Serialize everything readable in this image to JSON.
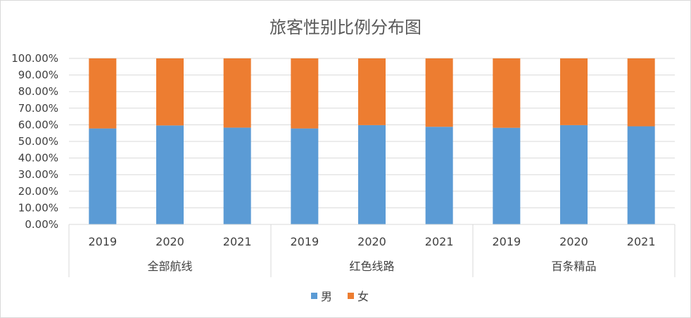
{
  "chart_data": {
    "type": "bar",
    "stacked": true,
    "title": "旅客性别比例分布图",
    "xlabel": "",
    "ylabel": "",
    "ylim": [
      0,
      1
    ],
    "yticks": [
      "0.00%",
      "10.00%",
      "20.00%",
      "30.00%",
      "40.00%",
      "50.00%",
      "60.00%",
      "70.00%",
      "80.00%",
      "90.00%",
      "100.00%"
    ],
    "grid": true,
    "legend_position": "bottom",
    "groups": [
      {
        "label": "全部航线",
        "categories": [
          "2019",
          "2020",
          "2021"
        ]
      },
      {
        "label": "红色线路",
        "categories": [
          "2019",
          "2020",
          "2021"
        ]
      },
      {
        "label": "百条精品",
        "categories": [
          "2019",
          "2020",
          "2021"
        ]
      }
    ],
    "series": [
      {
        "name": "男",
        "color": "#5b9bd5",
        "values": [
          0.578,
          0.596,
          0.583,
          0.578,
          0.598,
          0.588,
          0.582,
          0.598,
          0.591
        ]
      },
      {
        "name": "女",
        "color": "#ed7d31",
        "values": [
          0.422,
          0.404,
          0.417,
          0.422,
          0.402,
          0.412,
          0.418,
          0.402,
          0.409
        ]
      }
    ]
  }
}
